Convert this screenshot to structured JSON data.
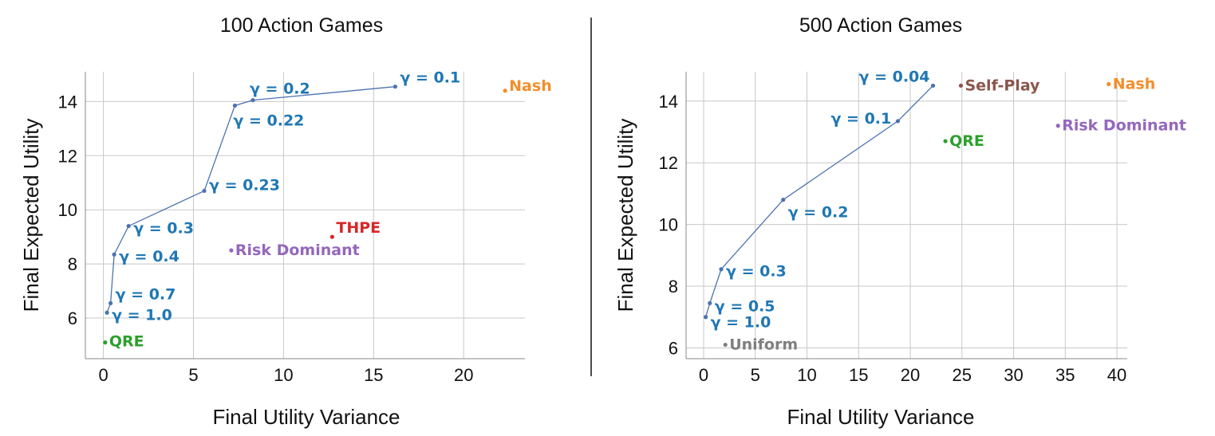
{
  "chart_data": [
    {
      "type": "scatter",
      "title": "100 Action Games",
      "xlabel": "Final Utility Variance",
      "ylabel": "Final Expected Utility",
      "xlim": [
        -1.0,
        23.4
      ],
      "ylim": [
        4.5,
        15.1
      ],
      "xticks": [
        "0",
        "5",
        "10",
        "15",
        "20"
      ],
      "yticks": [
        "6",
        "8",
        "10",
        "12",
        "14"
      ],
      "grid": true,
      "frontier": {
        "color": "#4c72b0",
        "points": [
          {
            "x": 0.2,
            "y": 6.2,
            "label": "γ = 1.0"
          },
          {
            "x": 0.4,
            "y": 6.55,
            "label": "γ = 0.7"
          },
          {
            "x": 0.6,
            "y": 8.35,
            "label": "γ = 0.4"
          },
          {
            "x": 1.4,
            "y": 9.4,
            "label": "γ = 0.3"
          },
          {
            "x": 5.6,
            "y": 10.7,
            "label": "γ = 0.23"
          },
          {
            "x": 7.3,
            "y": 13.85,
            "label": "γ = 0.22"
          },
          {
            "x": 8.3,
            "y": 14.05,
            "label": "γ = 0.2"
          },
          {
            "x": 16.2,
            "y": 14.55,
            "label": "γ = 0.1"
          }
        ]
      },
      "points": [
        {
          "name": "Nash",
          "x": 22.3,
          "y": 14.4,
          "color": "#f28e2b"
        },
        {
          "name": "THPE",
          "x": 12.7,
          "y": 9.0,
          "color": "#d62728"
        },
        {
          "name": "Risk Dominant",
          "x": 7.1,
          "y": 8.5,
          "color": "#9467bd"
        },
        {
          "name": "QRE",
          "x": 0.1,
          "y": 5.1,
          "color": "#2ca02c"
        }
      ]
    },
    {
      "type": "scatter",
      "title": "500 Action Games",
      "xlabel": "Final Utility Variance",
      "ylabel": "Final Expected Utility",
      "xlim": [
        -1.7,
        41.0
      ],
      "ylim": [
        5.65,
        14.95
      ],
      "xticks": [
        "0",
        "5",
        "10",
        "15",
        "20",
        "25",
        "30",
        "35",
        "40"
      ],
      "yticks": [
        "6",
        "8",
        "10",
        "12",
        "14"
      ],
      "grid": true,
      "frontier": {
        "color": "#4c72b0",
        "points": [
          {
            "x": 0.2,
            "y": 7.0,
            "label": "γ = 1.0"
          },
          {
            "x": 0.6,
            "y": 7.45,
            "label": "γ = 0.5"
          },
          {
            "x": 1.7,
            "y": 8.55,
            "label": "γ = 0.3"
          },
          {
            "x": 7.7,
            "y": 10.8,
            "label": "γ = 0.2"
          },
          {
            "x": 18.8,
            "y": 13.35,
            "label": "γ = 0.1"
          },
          {
            "x": 22.2,
            "y": 14.5,
            "label": "γ = 0.04"
          }
        ]
      },
      "points": [
        {
          "name": "Self-Play",
          "x": 24.9,
          "y": 14.5,
          "color": "#8c564b"
        },
        {
          "name": "Nash",
          "x": 39.2,
          "y": 14.55,
          "color": "#f28e2b"
        },
        {
          "name": "Risk Dominant",
          "x": 34.3,
          "y": 13.2,
          "color": "#9467bd"
        },
        {
          "name": "QRE",
          "x": 23.4,
          "y": 12.7,
          "color": "#2ca02c"
        },
        {
          "name": "Uniform",
          "x": 2.1,
          "y": 6.1,
          "color": "#7f7f7f"
        }
      ]
    }
  ]
}
